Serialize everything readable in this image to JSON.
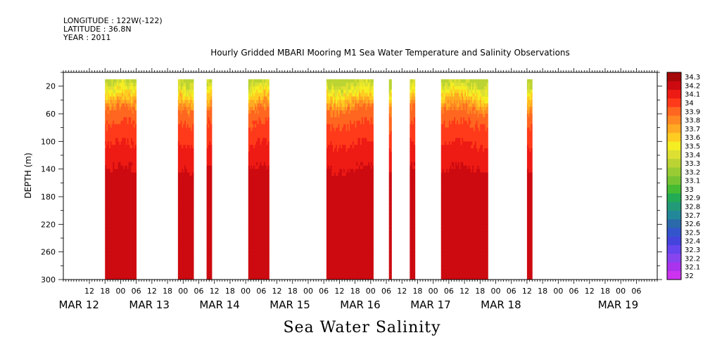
{
  "header": {
    "longitude": "LONGITUDE : 122W(-122)",
    "latitude": "LATITUDE : 36.8N",
    "year": "YEAR : 2011"
  },
  "chart_data": {
    "type": "heatmap",
    "title": "Hourly Gridded MBARI Mooring M1 Sea Water Temperature and Salinity Observations",
    "xlabel": "Sea Water Salinity",
    "ylabel": "DEPTH (m)",
    "x_unit": "hours since MAR 12 00:00",
    "xlim": [
      2,
      230
    ],
    "ylim": [
      300,
      0
    ],
    "y_ticks": [
      20,
      60,
      100,
      140,
      180,
      220,
      260,
      300
    ],
    "x_hour_ticks": [
      {
        "t": 12,
        "label": "12"
      },
      {
        "t": 18,
        "label": "18"
      },
      {
        "t": 24,
        "label": "00"
      },
      {
        "t": 30,
        "label": "06"
      },
      {
        "t": 36,
        "label": "12"
      },
      {
        "t": 42,
        "label": "18"
      },
      {
        "t": 48,
        "label": "00"
      },
      {
        "t": 54,
        "label": "06"
      },
      {
        "t": 60,
        "label": "12"
      },
      {
        "t": 66,
        "label": "18"
      },
      {
        "t": 72,
        "label": "00"
      },
      {
        "t": 78,
        "label": "06"
      },
      {
        "t": 84,
        "label": "12"
      },
      {
        "t": 90,
        "label": "18"
      },
      {
        "t": 96,
        "label": "00"
      },
      {
        "t": 102,
        "label": "06"
      },
      {
        "t": 108,
        "label": "12"
      },
      {
        "t": 114,
        "label": "18"
      },
      {
        "t": 120,
        "label": "00"
      },
      {
        "t": 126,
        "label": "06"
      },
      {
        "t": 132,
        "label": "12"
      },
      {
        "t": 138,
        "label": "18"
      },
      {
        "t": 144,
        "label": "00"
      },
      {
        "t": 150,
        "label": "06"
      },
      {
        "t": 156,
        "label": "12"
      },
      {
        "t": 162,
        "label": "18"
      },
      {
        "t": 168,
        "label": "00"
      },
      {
        "t": 174,
        "label": "06"
      },
      {
        "t": 180,
        "label": "12"
      },
      {
        "t": 186,
        "label": "18"
      },
      {
        "t": 192,
        "label": "00"
      },
      {
        "t": 198,
        "label": "06"
      },
      {
        "t": 204,
        "label": "12"
      },
      {
        "t": 210,
        "label": "18"
      },
      {
        "t": 216,
        "label": "00"
      },
      {
        "t": 222,
        "label": "06"
      }
    ],
    "x_date_labels": [
      {
        "t": 8,
        "label": "MAR 12"
      },
      {
        "t": 35,
        "label": "MAR 13"
      },
      {
        "t": 62,
        "label": "MAR 14"
      },
      {
        "t": 89,
        "label": "MAR 15"
      },
      {
        "t": 116,
        "label": "MAR 16"
      },
      {
        "t": 143,
        "label": "MAR 17"
      },
      {
        "t": 170,
        "label": "MAR 18"
      },
      {
        "t": 215,
        "label": "MAR 19"
      }
    ],
    "colorbar": {
      "levels": [
        "32",
        "32.1",
        "32.2",
        "32.3",
        "32.4",
        "32.5",
        "32.6",
        "32.7",
        "32.8",
        "32.9",
        "33",
        "33.1",
        "33.2",
        "33.3",
        "33.4",
        "33.5",
        "33.6",
        "33.7",
        "33.8",
        "33.9",
        "34",
        "34.1",
        "34.2",
        "34.3"
      ],
      "colors": [
        "#cc33ee",
        "#aa33ee",
        "#8844ee",
        "#6644ee",
        "#4444dd",
        "#3355cc",
        "#2a6aaa",
        "#228899",
        "#229977",
        "#22aa55",
        "#44bb33",
        "#77c433",
        "#99cc33",
        "#bbd433",
        "#dde033",
        "#f4ee22",
        "#ffcc22",
        "#ffaa22",
        "#ff8822",
        "#ff6620",
        "#ff3a1a",
        "#ee1a14",
        "#cc0a10",
        "#a40808"
      ]
    },
    "segments": [
      {
        "start": 18,
        "end": 30
      },
      {
        "start": 46,
        "end": 52
      },
      {
        "start": 57,
        "end": 59
      },
      {
        "start": 73,
        "end": 81
      },
      {
        "start": 103,
        "end": 121
      },
      {
        "start": 127,
        "end": 128
      },
      {
        "start": 135,
        "end": 137
      },
      {
        "start": 147,
        "end": 165
      },
      {
        "start": 180,
        "end": 182
      }
    ],
    "depth_profile": [
      {
        "depth": 10,
        "value": 33.3
      },
      {
        "depth": 25,
        "value": 33.5
      },
      {
        "depth": 40,
        "value": 33.7
      },
      {
        "depth": 55,
        "value": 33.9
      },
      {
        "depth": 75,
        "value": 34.0
      },
      {
        "depth": 105,
        "value": 34.1
      },
      {
        "depth": 140,
        "value": 34.2
      },
      {
        "depth": 230,
        "value": 34.3
      },
      {
        "depth": 285,
        "value": 34.2
      }
    ]
  }
}
